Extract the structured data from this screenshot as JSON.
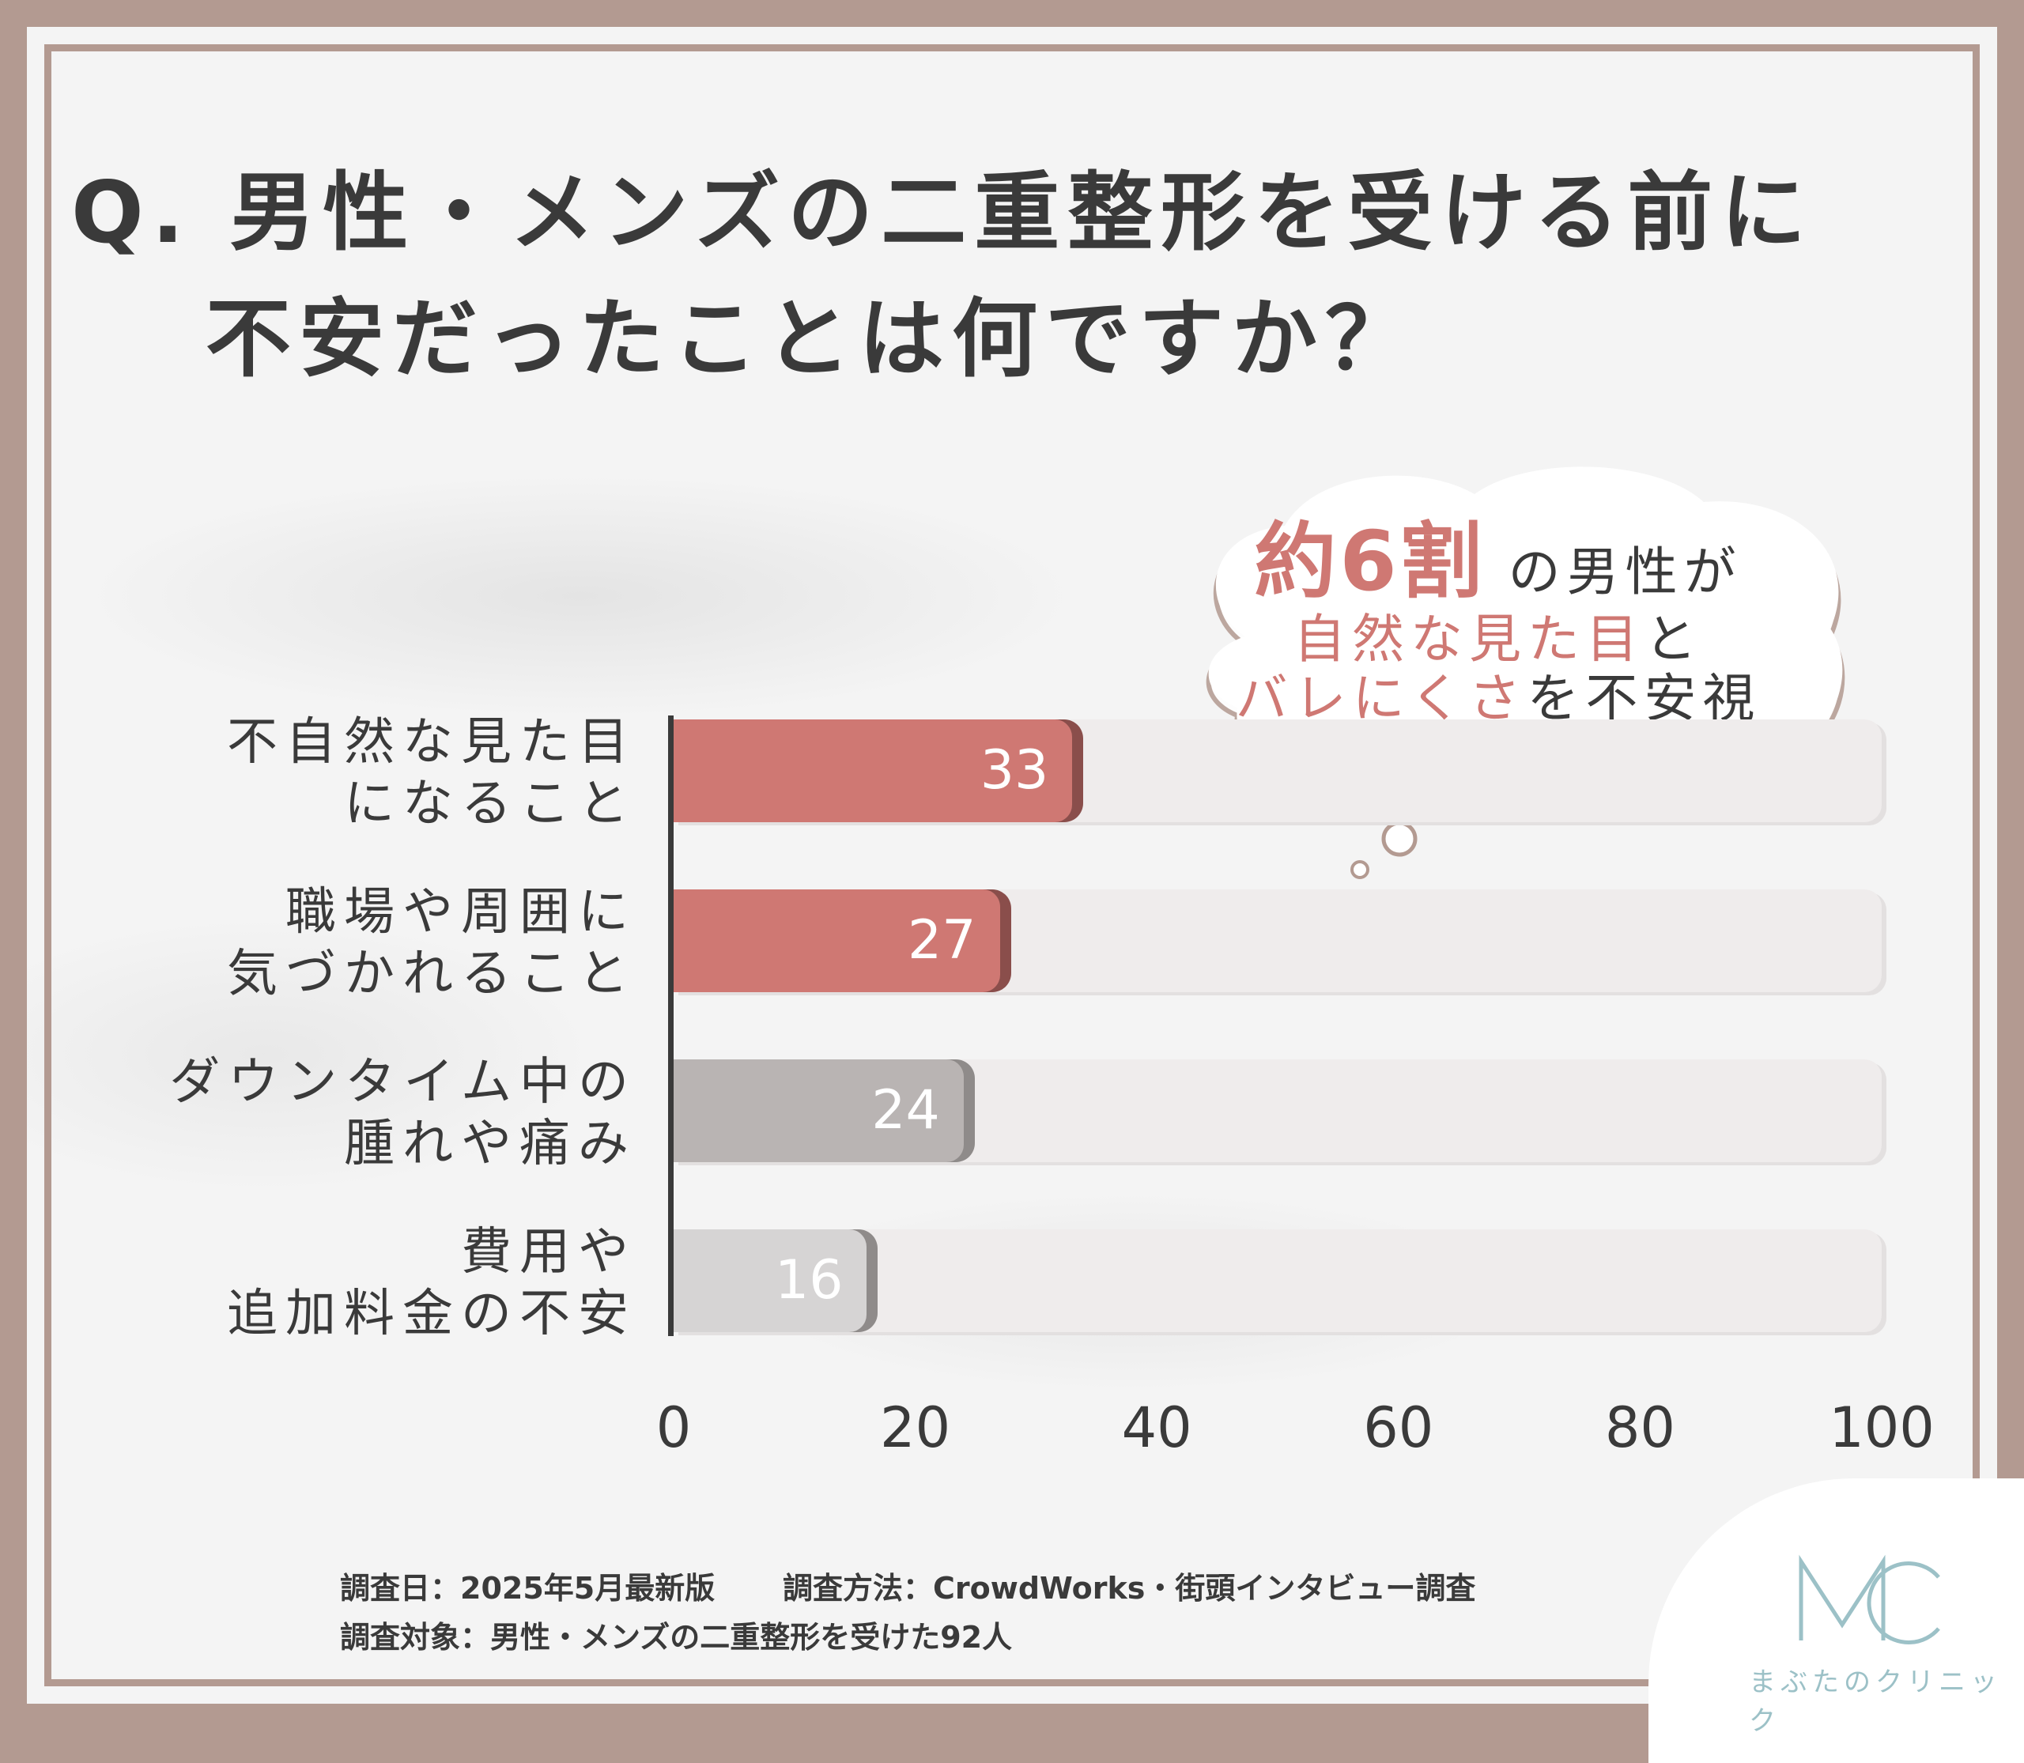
{
  "title": {
    "line1": "Q. 男性・メンズの二重整形を受ける前に",
    "line2": "不安だったことは何ですか？"
  },
  "callout": {
    "highlight": "約6割",
    "line1_rest": "の男性が",
    "line2_accent": "自然な見た目",
    "line2_rest": "と",
    "line3_accent": "バレにくさ",
    "line3_rest": "を不安視"
  },
  "chart_data": {
    "type": "bar",
    "orientation": "horizontal",
    "categories": [
      "不自然な見た目\nになること",
      "職場や周囲に\n気づかれること",
      "ダウンタイム中の\n腫れや痛み",
      "費用や\n追加料金の不安"
    ],
    "values": [
      33,
      27,
      24,
      16
    ],
    "value_labels": [
      "33",
      "27",
      "24",
      "16"
    ],
    "bar_colors": [
      "#cf7873",
      "#cf7873",
      "#b9b4b3",
      "#d6d4d4"
    ],
    "xlim": [
      0,
      100
    ],
    "xticks": [
      "0",
      "20",
      "40",
      "60",
      "80",
      "100"
    ],
    "track_color": "#efecec",
    "grid": false
  },
  "footer": {
    "date": "調査日：2025年5月最新版",
    "method": "調査方法：CrowdWorks・街頭インタビュー調査",
    "target": "調査対象：男性・メンズの二重整形を受けた92人"
  },
  "logo": {
    "mark": "MC",
    "name": "まぶたのクリニック",
    "color": "#9cc1c7"
  },
  "colors": {
    "frame": "#b39a91",
    "accent": "#cf7873",
    "text": "#3a3a3a"
  }
}
